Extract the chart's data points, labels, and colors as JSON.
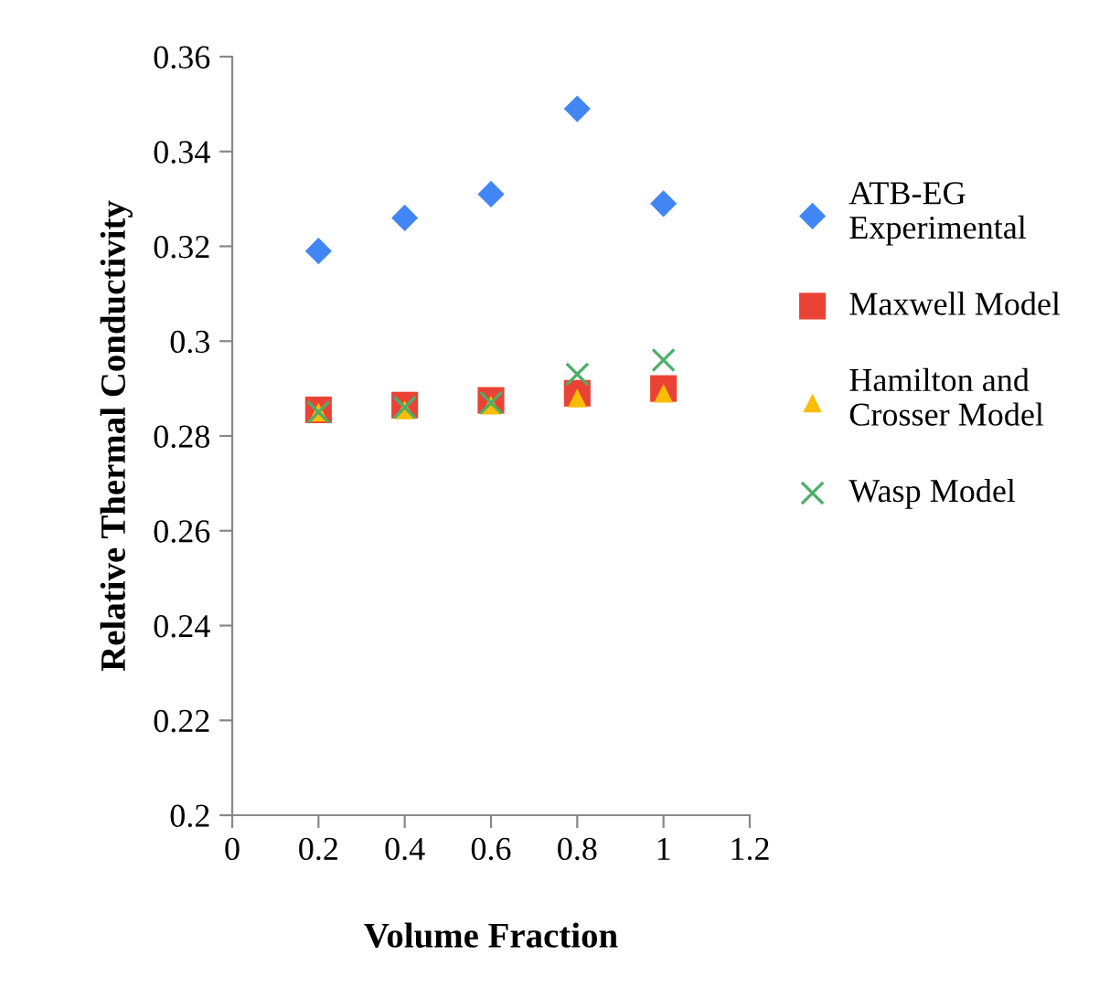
{
  "chart_data": {
    "type": "scatter",
    "xlabel": "Volume Fraction",
    "ylabel": "Relative Thermal Conductivity",
    "x": [
      0.2,
      0.4,
      0.6,
      0.8,
      1.0
    ],
    "series": [
      {
        "name": "ATB-EG\nExperimental",
        "color": "#4285f4",
        "marker": "diamond",
        "values": [
          0.319,
          0.326,
          0.331,
          0.349,
          0.329
        ]
      },
      {
        "name": "Maxwell Model",
        "color": "#ea4335",
        "marker": "square",
        "values": [
          0.2855,
          0.2865,
          0.2875,
          0.289,
          0.29
        ]
      },
      {
        "name": "Hamilton and\nCrosser Model",
        "color": "#fbbc04",
        "marker": "triangle",
        "values": [
          0.285,
          0.2855,
          0.2865,
          0.288,
          0.289
        ]
      },
      {
        "name": "Wasp Model",
        "color": "#4cae6a",
        "marker": "cross",
        "values": [
          0.285,
          0.286,
          0.287,
          0.293,
          0.296
        ]
      }
    ],
    "xlim": [
      0,
      1.2
    ],
    "xticks": [
      0,
      0.2,
      0.4,
      0.6,
      0.8,
      1,
      1.2
    ],
    "ylim": [
      0.2,
      0.36
    ],
    "yticks": [
      0.2,
      0.22,
      0.24,
      0.26,
      0.28,
      0.3,
      0.32,
      0.34,
      0.36
    ],
    "grid": false,
    "legend": "right"
  }
}
